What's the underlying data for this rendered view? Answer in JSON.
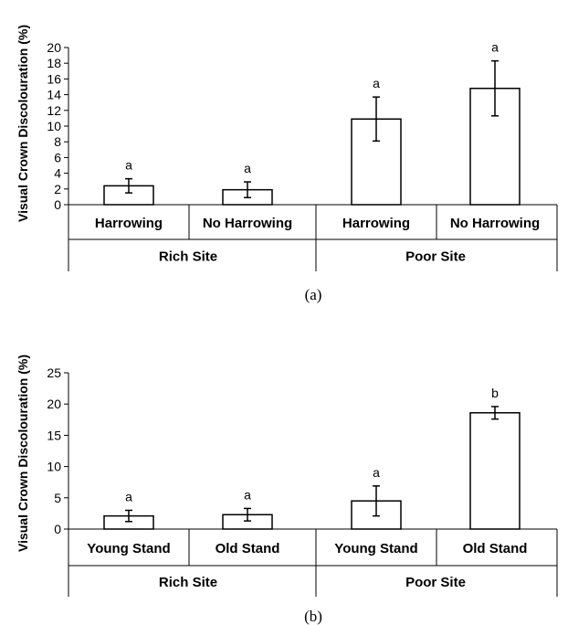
{
  "chart_data": [
    {
      "type": "bar",
      "ylabel": "Visual Crown Discolouration (%)",
      "ylim": [
        0,
        20
      ],
      "yticks": [
        0,
        2,
        4,
        6,
        8,
        10,
        12,
        14,
        16,
        18,
        20
      ],
      "categories": [
        "Harrowing",
        "No Harrowing",
        "Harrowing",
        "No Harrowing"
      ],
      "groups": [
        {
          "label": "Rich Site",
          "span": [
            0,
            1
          ]
        },
        {
          "label": "Poor Site",
          "span": [
            2,
            3
          ]
        }
      ],
      "values": [
        2.4,
        1.9,
        10.9,
        14.8
      ],
      "errors": [
        0.9,
        1.0,
        2.8,
        3.5
      ],
      "letters": [
        "a",
        "a",
        "a",
        "a"
      ],
      "caption": "(a)",
      "grid": false,
      "legend": "none"
    },
    {
      "type": "bar",
      "ylabel": "Visual Crown Discolouration (%)",
      "ylim": [
        0,
        25
      ],
      "yticks": [
        0,
        5,
        10,
        15,
        20,
        25
      ],
      "categories": [
        "Young Stand",
        "Old Stand",
        "Young Stand",
        "Old Stand"
      ],
      "groups": [
        {
          "label": "Rich Site",
          "span": [
            0,
            1
          ]
        },
        {
          "label": "Poor Site",
          "span": [
            2,
            3
          ]
        }
      ],
      "values": [
        2.1,
        2.3,
        4.5,
        18.6
      ],
      "errors": [
        0.9,
        1.0,
        2.4,
        1.0
      ],
      "letters": [
        "a",
        "a",
        "a",
        "b"
      ],
      "caption": "(b)",
      "grid": false,
      "legend": "none"
    }
  ]
}
